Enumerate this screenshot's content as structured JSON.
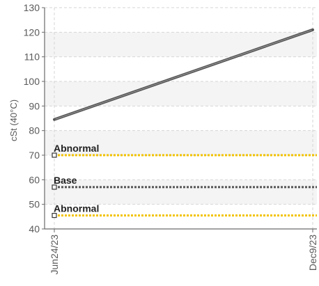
{
  "chart_data": {
    "type": "line",
    "ylabel": "cSt (40°C)",
    "ylim": [
      40,
      130
    ],
    "yticks": [
      40,
      50,
      60,
      70,
      80,
      90,
      100,
      110,
      120,
      130
    ],
    "x": [
      "Jun24/23",
      "Dec9/23"
    ],
    "series": [
      {
        "values": [
          84.5,
          121
        ],
        "color": "#555555"
      }
    ],
    "reference_lines": [
      {
        "label": "Abnormal",
        "value": 70,
        "color": "#f2c200"
      },
      {
        "label": "Base",
        "value": 57,
        "color": "#555555"
      },
      {
        "label": "Abnormal",
        "value": 45.5,
        "color": "#f2c200"
      }
    ],
    "grid": true,
    "bands": true
  }
}
